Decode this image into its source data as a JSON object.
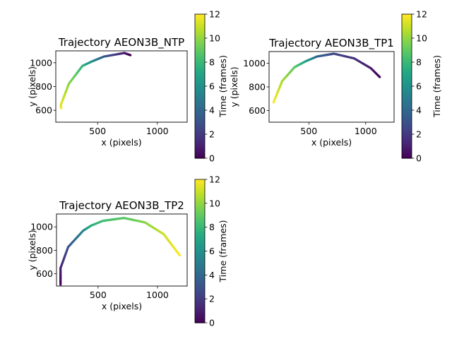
{
  "chart_data": [
    {
      "type": "line",
      "title": "Trajectory AEON3B_NTP",
      "xlabel": "x (pixels)",
      "ylabel": "y (pixels)",
      "xlim": [
        150,
        1250
      ],
      "ylim": [
        500,
        1100
      ],
      "xticks": [
        500,
        1000
      ],
      "yticks": [
        600,
        800,
        1000
      ],
      "colormap": "viridis",
      "colorbar": {
        "label": "Time (frames)",
        "range": [
          0,
          12
        ],
        "ticks": [
          0,
          2,
          4,
          6,
          8,
          10,
          12
        ]
      },
      "points": [
        {
          "x": 195,
          "y": 618,
          "t": 12
        },
        {
          "x": 192,
          "y": 645,
          "t": 11.6
        },
        {
          "x": 260,
          "y": 824,
          "t": 10
        },
        {
          "x": 373,
          "y": 973,
          "t": 8
        },
        {
          "x": 455,
          "y": 1012,
          "t": 6
        },
        {
          "x": 553,
          "y": 1052,
          "t": 3.5
        },
        {
          "x": 723,
          "y": 1082,
          "t": 1
        },
        {
          "x": 775,
          "y": 1064,
          "t": 0
        }
      ]
    },
    {
      "type": "line",
      "title": "Trajectory AEON3B_TP1",
      "xlabel": "x (pixels)",
      "ylabel": "y (pixels)",
      "xlim": [
        150,
        1250
      ],
      "ylim": [
        500,
        1100
      ],
      "xticks": [
        500,
        1000
      ],
      "yticks": [
        600,
        800,
        1000
      ],
      "colormap": "viridis",
      "colorbar": {
        "label": "Time (frames)",
        "range": [
          0,
          12
        ],
        "ticks": [
          0,
          2,
          4,
          6,
          8,
          10,
          12
        ]
      },
      "points": [
        {
          "x": 190,
          "y": 669,
          "t": 12
        },
        {
          "x": 265,
          "y": 849,
          "t": 10.5
        },
        {
          "x": 375,
          "y": 968,
          "t": 9
        },
        {
          "x": 473,
          "y": 1018,
          "t": 7
        },
        {
          "x": 572,
          "y": 1058,
          "t": 4
        },
        {
          "x": 720,
          "y": 1082,
          "t": 2.5
        },
        {
          "x": 898,
          "y": 1042,
          "t": 1.8
        },
        {
          "x": 1046,
          "y": 958,
          "t": 1
        },
        {
          "x": 1124,
          "y": 883,
          "t": 0
        }
      ]
    },
    {
      "type": "line",
      "title": "Trajectory AEON3B_TP2",
      "xlabel": "x (pixels)",
      "ylabel": "y (pixels)",
      "xlim": [
        150,
        1250
      ],
      "ylim": [
        495,
        1110
      ],
      "xticks": [
        500,
        1000
      ],
      "yticks": [
        600,
        800,
        1000
      ],
      "colormap": "viridis",
      "colorbar": {
        "label": "Time (frames)",
        "range": [
          0,
          12
        ],
        "ticks": [
          0,
          2,
          4,
          6,
          8,
          10,
          12
        ]
      },
      "points": [
        {
          "x": 184,
          "y": 508,
          "t": 0
        },
        {
          "x": 184,
          "y": 648,
          "t": 1
        },
        {
          "x": 248,
          "y": 828,
          "t": 3
        },
        {
          "x": 375,
          "y": 968,
          "t": 5.5
        },
        {
          "x": 444,
          "y": 1012,
          "t": 7.5
        },
        {
          "x": 542,
          "y": 1052,
          "t": 8.3
        },
        {
          "x": 718,
          "y": 1076,
          "t": 8.8
        },
        {
          "x": 895,
          "y": 1038,
          "t": 9.8
        },
        {
          "x": 1052,
          "y": 938,
          "t": 11
        },
        {
          "x": 1187,
          "y": 758,
          "t": 12
        }
      ]
    }
  ]
}
